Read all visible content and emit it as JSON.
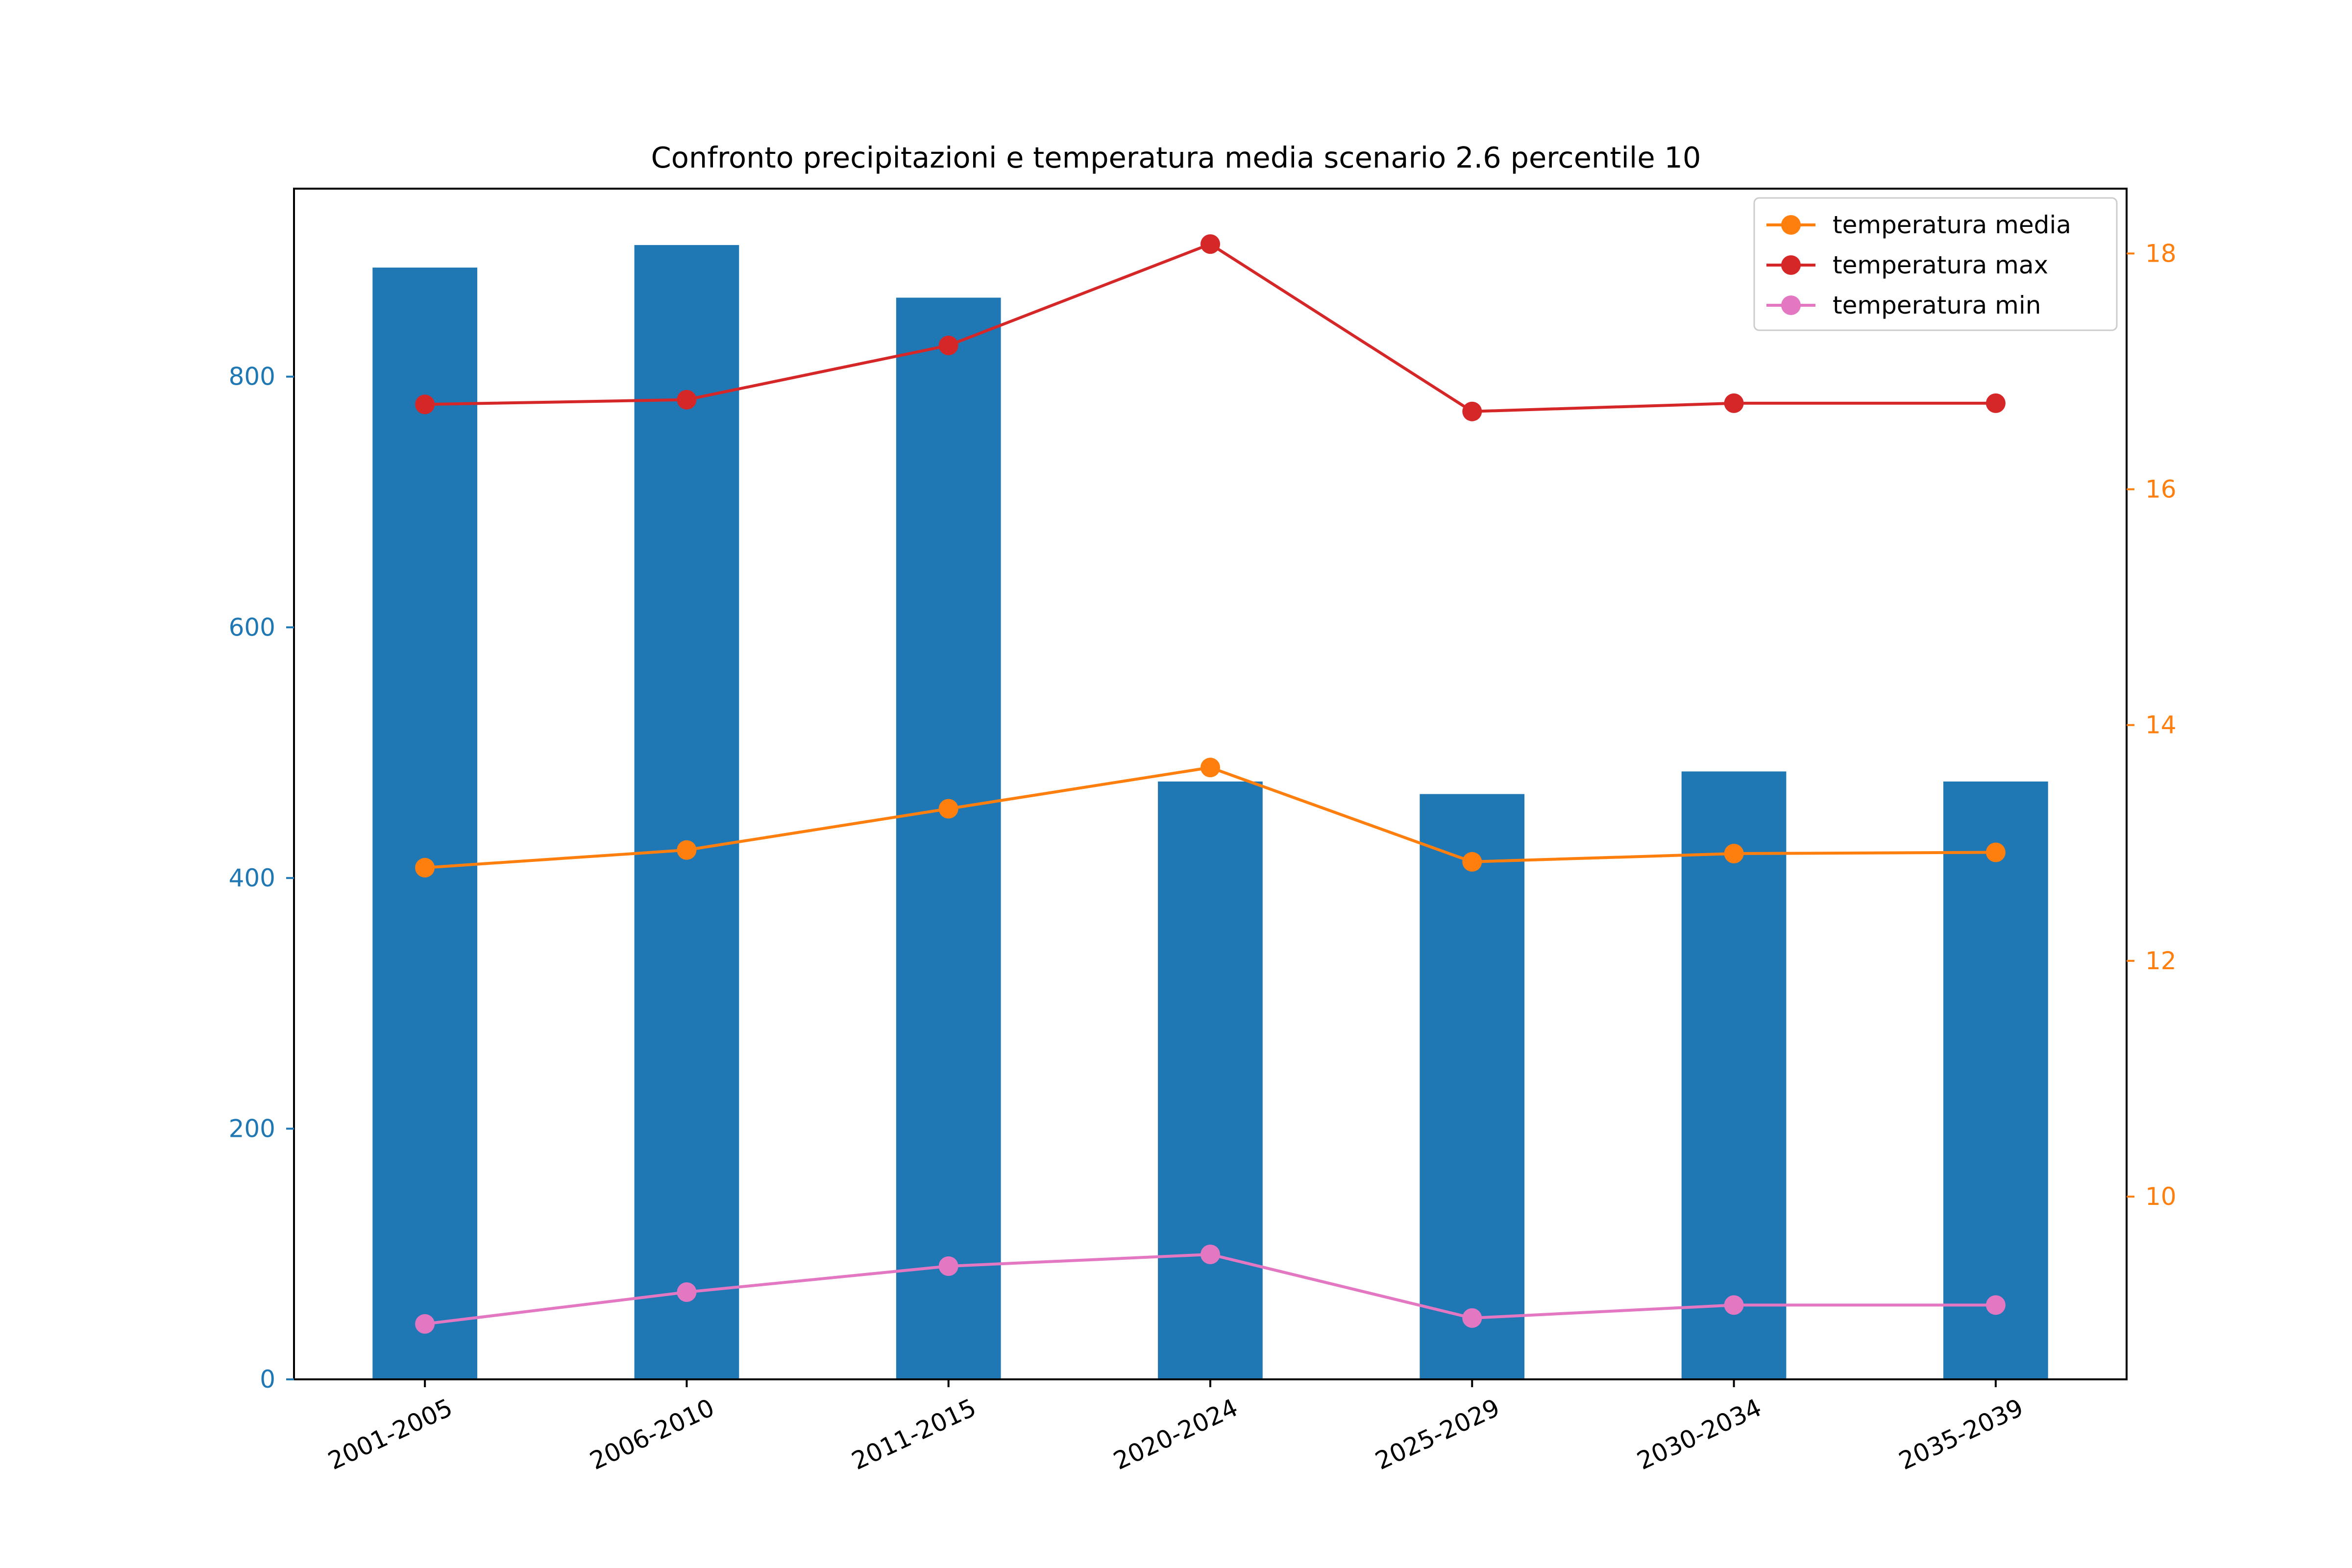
{
  "chart_data": {
    "type": "bar",
    "title": "Confronto precipitazioni e temperatura media scenario 2.6 percentile 10",
    "xlabel": "",
    "ylabel": "",
    "y2label": "",
    "categories": [
      "2001-2005",
      "2006-2010",
      "2011-2015",
      "2020-2024",
      "2025-2029",
      "2030-2034",
      "2035-2039"
    ],
    "bars": {
      "color": "#1f77b4",
      "values": [
        887,
        905,
        863,
        477,
        467,
        485,
        477
      ],
      "axis": "left"
    },
    "series": [
      {
        "name": "temperatura media",
        "color": "#ff7f0e",
        "axis": "right",
        "values": [
          12.79,
          12.94,
          13.29,
          13.64,
          12.84,
          12.91,
          12.92
        ]
      },
      {
        "name": "temperatura max",
        "color": "#d62728",
        "axis": "right",
        "values": [
          16.72,
          16.76,
          17.22,
          18.08,
          16.66,
          16.73,
          16.73
        ]
      },
      {
        "name": "temperatura min",
        "color": "#e377c2",
        "axis": "right",
        "values": [
          8.92,
          9.19,
          9.41,
          9.51,
          8.97,
          9.08,
          9.08
        ]
      }
    ],
    "ylim": [
      0,
      950
    ],
    "y2lim": [
      8.45,
      18.55
    ],
    "yticks": [
      0,
      200,
      400,
      600,
      800
    ],
    "y2ticks": [
      10,
      12,
      14,
      16,
      18
    ],
    "left_axis_color": "#1f77b4",
    "right_axis_color": "#ff7f0e",
    "grid": false,
    "legend_position": "top-right",
    "x_tick_rotation": -25
  }
}
